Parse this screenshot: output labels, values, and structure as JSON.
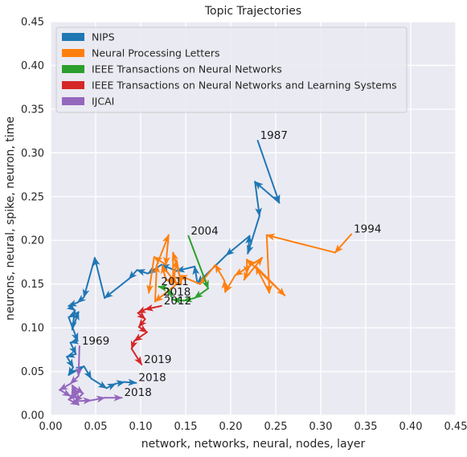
{
  "chart_data": {
    "type": "line",
    "title": "Topic Trajectories",
    "xlabel": "network, networks, neural, nodes, layer",
    "ylabel": "neurons, neural, spike, neuron, time",
    "xlim": [
      0.0,
      0.45
    ],
    "ylim": [
      0.0,
      0.45
    ],
    "xticks": [
      "0.00",
      "0.05",
      "0.10",
      "0.15",
      "0.20",
      "0.25",
      "0.30",
      "0.35",
      "0.40",
      "0.45"
    ],
    "yticks": [
      "0.00",
      "0.05",
      "0.10",
      "0.15",
      "0.20",
      "0.25",
      "0.30",
      "0.35",
      "0.40",
      "0.45"
    ],
    "grid": true,
    "legend_position": "top-left",
    "series": [
      {
        "name": "NIPS",
        "color": "#1f77b4",
        "points": [
          [
            0.23,
            0.314
          ],
          [
            0.254,
            0.243
          ],
          [
            0.227,
            0.267
          ],
          [
            0.232,
            0.228
          ],
          [
            0.219,
            0.185
          ],
          [
            0.221,
            0.205
          ],
          [
            0.195,
            0.183
          ],
          [
            0.163,
            0.151
          ],
          [
            0.16,
            0.17
          ],
          [
            0.14,
            0.165
          ],
          [
            0.123,
            0.172
          ],
          [
            0.108,
            0.162
          ],
          [
            0.096,
            0.166
          ],
          [
            0.087,
            0.156
          ],
          [
            0.06,
            0.134
          ],
          [
            0.049,
            0.18
          ],
          [
            0.037,
            0.135
          ],
          [
            0.03,
            0.129
          ],
          [
            0.02,
            0.125
          ],
          [
            0.027,
            0.12
          ],
          [
            0.024,
            0.098
          ],
          [
            0.031,
            0.118
          ],
          [
            0.02,
            0.112
          ],
          [
            0.03,
            0.085
          ],
          [
            0.022,
            0.083
          ],
          [
            0.028,
            0.07
          ],
          [
            0.018,
            0.067
          ],
          [
            0.025,
            0.055
          ],
          [
            0.02,
            0.046
          ],
          [
            0.037,
            0.056
          ],
          [
            0.045,
            0.042
          ],
          [
            0.062,
            0.031
          ],
          [
            0.072,
            0.036
          ],
          [
            0.082,
            0.038
          ],
          [
            0.095,
            0.037
          ]
        ],
        "labels": [
          {
            "text": "1987",
            "index": 0
          },
          {
            "text": "2018",
            "index": 34
          }
        ]
      },
      {
        "name": "Neural Processing Letters",
        "color": "#ff7f0e",
        "points": [
          [
            0.334,
            0.207
          ],
          [
            0.316,
            0.186
          ],
          [
            0.24,
            0.206
          ],
          [
            0.243,
            0.14
          ],
          [
            0.228,
            0.17
          ],
          [
            0.26,
            0.137
          ],
          [
            0.218,
            0.178
          ],
          [
            0.218,
            0.162
          ],
          [
            0.215,
            0.155
          ],
          [
            0.235,
            0.18
          ],
          [
            0.205,
            0.16
          ],
          [
            0.194,
            0.141
          ],
          [
            0.193,
            0.154
          ],
          [
            0.183,
            0.172
          ],
          [
            0.166,
            0.15
          ],
          [
            0.143,
            0.16
          ],
          [
            0.136,
            0.186
          ],
          [
            0.136,
            0.15
          ],
          [
            0.14,
            0.177
          ],
          [
            0.145,
            0.15
          ],
          [
            0.128,
            0.155
          ],
          [
            0.124,
            0.171
          ],
          [
            0.14,
            0.15
          ],
          [
            0.116,
            0.13
          ],
          [
            0.118,
            0.172
          ],
          [
            0.131,
            0.206
          ],
          [
            0.128,
            0.172
          ],
          [
            0.115,
            0.181
          ],
          [
            0.109,
            0.14
          ]
        ],
        "labels": [
          {
            "text": "1994",
            "index": 0
          }
        ]
      },
      {
        "name": "IEEE Transactions on Neural Networks",
        "color": "#2ca02c",
        "points": [
          [
            0.153,
            0.205
          ],
          [
            0.175,
            0.145
          ],
          [
            0.16,
            0.134
          ],
          [
            0.148,
            0.131
          ],
          [
            0.136,
            0.132
          ],
          [
            0.13,
            0.145
          ],
          [
            0.12,
            0.147
          ]
        ],
        "labels": [
          {
            "text": "2004",
            "index": 0
          },
          {
            "text": "2011",
            "index": 6
          }
        ]
      },
      {
        "name": "IEEE Transactions on Neural Networks and Learning Systems",
        "color": "#d62728",
        "points": [
          [
            0.123,
            0.125
          ],
          [
            0.105,
            0.121
          ],
          [
            0.097,
            0.117
          ],
          [
            0.105,
            0.11
          ],
          [
            0.098,
            0.101
          ],
          [
            0.107,
            0.095
          ],
          [
            0.093,
            0.085
          ],
          [
            0.09,
            0.076
          ],
          [
            0.101,
            0.058
          ]
        ],
        "labels": [
          {
            "text": "2012",
            "index": 0
          },
          {
            "text": "2019",
            "index": 8
          }
        ]
      },
      {
        "name": "IJCAI",
        "color": "#9467bd",
        "points": [
          [
            0.032,
            0.079
          ],
          [
            0.031,
            0.045
          ],
          [
            0.022,
            0.036
          ],
          [
            0.01,
            0.029
          ],
          [
            0.022,
            0.022
          ],
          [
            0.032,
            0.027
          ],
          [
            0.02,
            0.018
          ],
          [
            0.031,
            0.012
          ],
          [
            0.024,
            0.034
          ],
          [
            0.036,
            0.025
          ],
          [
            0.027,
            0.016
          ],
          [
            0.045,
            0.017
          ],
          [
            0.06,
            0.02
          ],
          [
            0.079,
            0.02
          ]
        ],
        "labels": [
          {
            "text": "1969",
            "index": 0
          },
          {
            "text": "2018",
            "index": 13
          }
        ]
      }
    ],
    "extra_annotations": [
      {
        "text": "2018",
        "x": 0.125,
        "y": 0.137
      }
    ]
  }
}
